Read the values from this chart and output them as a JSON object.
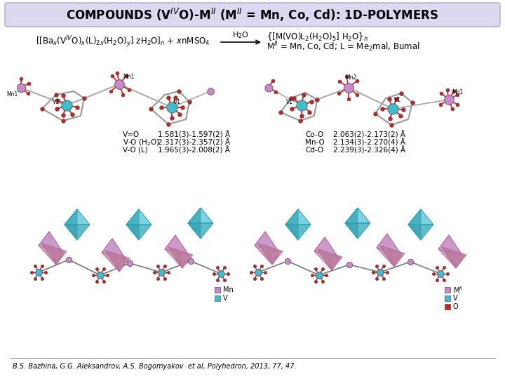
{
  "title_text": "COMPOUNDS (V$^{IV}$O)-M$^{II}$ (M$^{II}$ = Mn, Co, Cd): 1D-POLYMERS",
  "title_box_facecolor": "#ddd8f0",
  "title_box_edgecolor": "#aaaacc",
  "bg_color": "#ffffff",
  "reactant_formula": "[[Ba$_x$(V$^{IV}$O)$_x$(L)$_{2x}$(H$_2$O)$_y$] zH$_2$O]$_n$ + $x$nMSO$_4$",
  "h2o_label": "H$_2$O",
  "product_line1": "{[M(VO)L$_2$(H$_2$O)$_5$] H$_2$O}$_n$",
  "product_line2": "M$^{II}$ = Mn, Co, Cd; L = Me$_2$mal, Bumal",
  "v_color": "#44BBCC",
  "mn_color": "#CC88CC",
  "o_color": "#CC2222",
  "bond_color": "#888888",
  "poly_v_color": "#66CCDD",
  "poly_mn_color": "#CC99CC",
  "bond_left_label1": "V=O",
  "bond_left_val1": "1.581(3)-1.597(2) Å",
  "bond_left_label2": "V-O (H$_2$O)",
  "bond_left_val2": "2.317(3)-2.357(2) Å",
  "bond_left_label3": "V-O (L)",
  "bond_left_val3": "1.965(3)-2.008(2) Å",
  "bond_right_label1": "Co-O",
  "bond_right_val1": "2.063(2)-2.173(2) Å",
  "bond_right_label2": "Mn-O",
  "bond_right_val2": "2.134(3)-2.270(4) Å",
  "bond_right_label3": "Cd-O",
  "bond_right_val3": "2.239(3)-2.326(4) Å",
  "citation": "B.S. Bazhina, G.G. Aleksandrov, A.S. Bogomyakov  et al, Polyhedron, 2013, 77, 47.",
  "legend_left": [
    [
      "#CC88CC",
      "Mn"
    ],
    [
      "#44BBCC",
      "V"
    ]
  ],
  "legend_right": [
    [
      "#CC88CC",
      "M$^{II}$"
    ],
    [
      "#44BBCC",
      "V"
    ],
    [
      "#CC2222",
      "O"
    ]
  ]
}
